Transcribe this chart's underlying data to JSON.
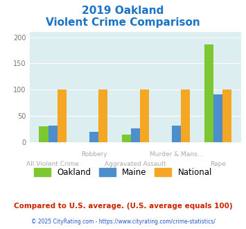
{
  "title_line1": "2019 Oakland",
  "title_line2": "Violent Crime Comparison",
  "categories": [
    "All Violent Crime",
    "Robbery",
    "Aggravated Assault",
    "Murder & Mans...",
    "Rape"
  ],
  "oakland": [
    30,
    0,
    14,
    0,
    187
  ],
  "maine": [
    31,
    19,
    26,
    31,
    91
  ],
  "national": [
    100,
    100,
    100,
    100,
    100
  ],
  "oakland_color": "#7dc832",
  "maine_color": "#4d8fcc",
  "national_color": "#f5a623",
  "bg_color": "#ddeef0",
  "title_color": "#1a73c5",
  "ylim": [
    0,
    210
  ],
  "yticks": [
    0,
    50,
    100,
    150,
    200
  ],
  "xlabel_top": [
    "",
    "Robbery",
    "",
    "Murder & Mans...",
    ""
  ],
  "xlabel_bottom": [
    "All Violent Crime",
    "",
    "Aggravated Assault",
    "",
    "Rape"
  ],
  "footer1": "Compared to U.S. average. (U.S. average equals 100)",
  "footer2": "© 2025 CityRating.com - https://www.cityrating.com/crime-statistics/",
  "footer1_color": "#cc2200",
  "footer2_color": "#2255cc",
  "label_color": "#aaaaaa",
  "bar_width": 0.22
}
